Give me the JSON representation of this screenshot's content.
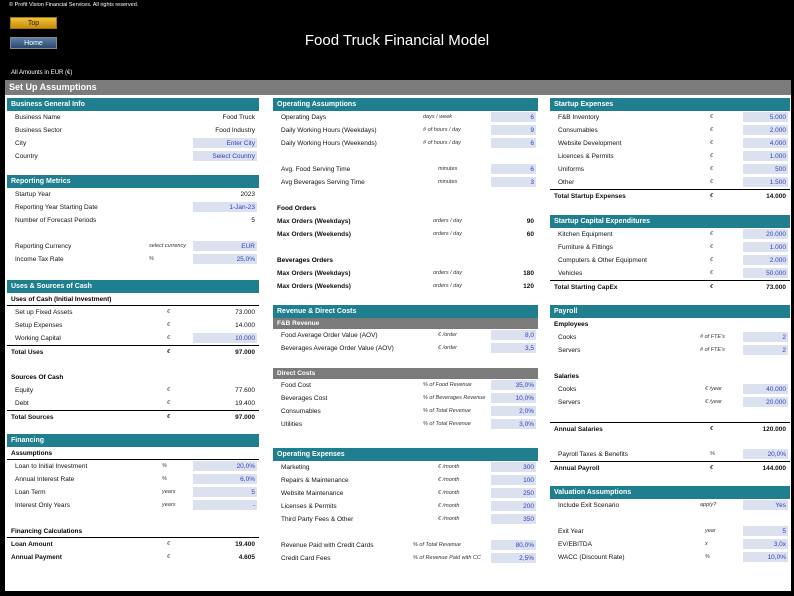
{
  "copyright": "© Profit Vision Financial Services. All rights reserved.",
  "nav": {
    "top": "Top",
    "home": "Home"
  },
  "title": "Food Truck Financial Model",
  "amounts_label": "All Amounts in  EUR (€)",
  "setup_title": "Set Up Assumptions",
  "business": {
    "header": "Business General Info",
    "rows": [
      {
        "label": "Business Name",
        "value": "Food Truck"
      },
      {
        "label": "Business Sector",
        "value": "Food Industry"
      },
      {
        "label": "City",
        "value": "Enter City"
      },
      {
        "label": "Country",
        "value": "Select Country"
      }
    ]
  },
  "reporting": {
    "header": "Reporting Metrics",
    "rows": [
      {
        "label": "Startup Year",
        "unit": "",
        "value": "2023"
      },
      {
        "label": "Reporting Year Starting Date",
        "unit": "",
        "value": "1-Jan-23"
      },
      {
        "label": "Number of Forecast Periods",
        "unit": "",
        "value": "5"
      },
      {
        "label": "Reporting Currency",
        "unit": "select currency",
        "value": "EUR"
      },
      {
        "label": "Income Tax Rate",
        "unit": "%",
        "value": "25,0%"
      }
    ]
  },
  "uses": {
    "header": "Uses & Sources of Cash",
    "uses_title": "Uses of Cash (Initial Investment)",
    "uses_rows": [
      {
        "label": "Set up Fixed Assets",
        "unit": "€",
        "value": "73.000"
      },
      {
        "label": "Setup Expenses",
        "unit": "€",
        "value": "14.000"
      },
      {
        "label": "Working Capital",
        "unit": "€",
        "value": "10.000"
      }
    ],
    "total_uses": {
      "label": "Total Uses",
      "unit": "€",
      "value": "97.000"
    },
    "sources_title": "Sources Of Cash",
    "sources_rows": [
      {
        "label": "Equity",
        "unit": "€",
        "value": "77.600"
      },
      {
        "label": "Debt",
        "unit": "€",
        "value": "19.400"
      }
    ],
    "total_sources": {
      "label": "Total Sources",
      "unit": "€",
      "value": "97.000"
    }
  },
  "financing": {
    "header": "Financing",
    "assumptions_title": "Assumptions",
    "rows": [
      {
        "label": "Loan to Initial Investment",
        "unit": "%",
        "value": "20,0%"
      },
      {
        "label": "Annual Interest Rate",
        "unit": "%",
        "value": "6,0%"
      },
      {
        "label": "Loan Term",
        "unit": "years",
        "value": "5"
      },
      {
        "label": "Interest Only Years",
        "unit": "years",
        "value": "-"
      }
    ],
    "calc_title": "Financing Calculations",
    "calc_rows": [
      {
        "label": "Loan Amount",
        "unit": "€",
        "value": "19.400"
      },
      {
        "label": "Annual Payment",
        "unit": "€",
        "value": "4.605"
      }
    ]
  },
  "operating": {
    "header": "Operating Assumptions",
    "rows1": [
      {
        "label": "Operating Days",
        "unit": "days / week",
        "value": "6"
      },
      {
        "label": "Daily Working Hours (Weekdays)",
        "unit": "# of hours / day",
        "value": "9"
      },
      {
        "label": "Daily Working Hours (Weekends)",
        "unit": "# of hours / day",
        "value": "6"
      }
    ],
    "rows2": [
      {
        "label": "Avg. Food Serving Time",
        "unit": "minutes",
        "value": "6"
      },
      {
        "label": "Avg Beverages Serving Time",
        "unit": "minutes",
        "value": "3"
      }
    ],
    "food_title": "Food Orders",
    "food_rows": [
      {
        "label": "Max Orders (Weekdays)",
        "unit": "orders / day",
        "value": "90"
      },
      {
        "label": "Max Orders (Weekends)",
        "unit": "orders / day",
        "value": "60"
      }
    ],
    "bev_title": "Beverages Orders",
    "bev_rows": [
      {
        "label": "Max Orders (Weekdays)",
        "unit": "orders / day",
        "value": "180"
      },
      {
        "label": "Max Orders (Weekends)",
        "unit": "orders / day",
        "value": "120"
      }
    ]
  },
  "revenue": {
    "header": "Revenue & Direct Costs",
    "fb_title": "F&B Revenue",
    "fb_rows": [
      {
        "label": "Food Average Order Value (AOV)",
        "unit": "€ /order",
        "value": "8,0"
      },
      {
        "label": "Beverages Average Order Value (AOV)",
        "unit": "€ /order",
        "value": "3,5"
      }
    ],
    "dc_title": "Direct Costs",
    "dc_rows": [
      {
        "label": "Food Cost",
        "unit": "% of Food Revenue",
        "value": "35,0%"
      },
      {
        "label": "Beverages Cost",
        "unit": "% of Beverages Revenue",
        "value": "10,0%"
      },
      {
        "label": "Consumables",
        "unit": "% of Total Revenue",
        "value": "2,0%"
      },
      {
        "label": "Utilities",
        "unit": "% of Total Revenue",
        "value": "3,0%"
      }
    ]
  },
  "opex": {
    "header": "Operating Expenses",
    "rows": [
      {
        "label": "Marketing",
        "unit": "€ /month",
        "value": "300"
      },
      {
        "label": "Repairs & Maintenance",
        "unit": "€ /month",
        "value": "100"
      },
      {
        "label": "Website Maintenance",
        "unit": "€ /month",
        "value": "250"
      },
      {
        "label": "Licenses & Permits",
        "unit": "€ /month",
        "value": "200"
      },
      {
        "label": "Third Party Fees & Other",
        "unit": "€ /month",
        "value": "350"
      }
    ],
    "rows2": [
      {
        "label": "Revenue Paid with Credit Cards",
        "unit": "% of Total Revenue",
        "value": "80,0%"
      },
      {
        "label": "Credit Card Fees",
        "unit": "% of Revenue Paid with CC",
        "value": "2,5%"
      }
    ]
  },
  "startup": {
    "header": "Startup Expenses",
    "rows": [
      {
        "label": "F&B Inventory",
        "unit": "€",
        "value": "5.000"
      },
      {
        "label": "Consumables",
        "unit": "€",
        "value": "2.000"
      },
      {
        "label": "Website Development",
        "unit": "€",
        "value": "4.000"
      },
      {
        "label": "Licences & Permits",
        "unit": "€",
        "value": "1.000"
      },
      {
        "label": "Uniforms",
        "unit": "€",
        "value": "500"
      },
      {
        "label": "Other",
        "unit": "€",
        "value": "1.500"
      }
    ],
    "total": {
      "label": "Total Startup Expenses",
      "unit": "€",
      "value": "14.000"
    }
  },
  "capex": {
    "header": "Startup Capital Expenditures",
    "rows": [
      {
        "label": "Kitchen Equipment",
        "unit": "€",
        "value": "20.000"
      },
      {
        "label": "Furniture & Fittings",
        "unit": "€",
        "value": "1.000"
      },
      {
        "label": "Computers & Other Equipment",
        "unit": "€",
        "value": "2.000"
      },
      {
        "label": "Vehicles",
        "unit": "€",
        "value": "50.000"
      }
    ],
    "total": {
      "label": "Total Starting CapEx",
      "unit": "€",
      "value": "73.000"
    }
  },
  "payroll": {
    "header": "Payroll",
    "emp_title": "Employees",
    "emp_rows": [
      {
        "label": "Cooks",
        "unit": "# of FTE's",
        "value": "2"
      },
      {
        "label": "Servers",
        "unit": "# of FTE's",
        "value": "2"
      }
    ],
    "sal_title": "Salaries",
    "sal_rows": [
      {
        "label": "Cooks",
        "unit": "€ /year",
        "value": "40.000"
      },
      {
        "label": "Servers",
        "unit": "€ /year",
        "value": "20.000"
      }
    ],
    "annual_salaries": {
      "label": "Annual Salaries",
      "unit": "€",
      "value": "120.000"
    },
    "taxes": {
      "label": "Payroll Taxes & Benefits",
      "unit": "%",
      "value": "20,0%"
    },
    "annual_payroll": {
      "label": "Annual Payroll",
      "unit": "€",
      "value": "144.000"
    }
  },
  "valuation": {
    "header": "Valuation Assumptions",
    "rows": [
      {
        "label": "Include Exit Scenario",
        "unit": "apply?",
        "value": "Yes"
      }
    ],
    "rows2": [
      {
        "label": "Exit Year",
        "unit": "year",
        "value": "5"
      },
      {
        "label": "EV/EBITDA",
        "unit": "x",
        "value": "3,0x"
      },
      {
        "label": "WACC (Discount Rate)",
        "unit": "%",
        "value": "10,0%"
      }
    ]
  }
}
